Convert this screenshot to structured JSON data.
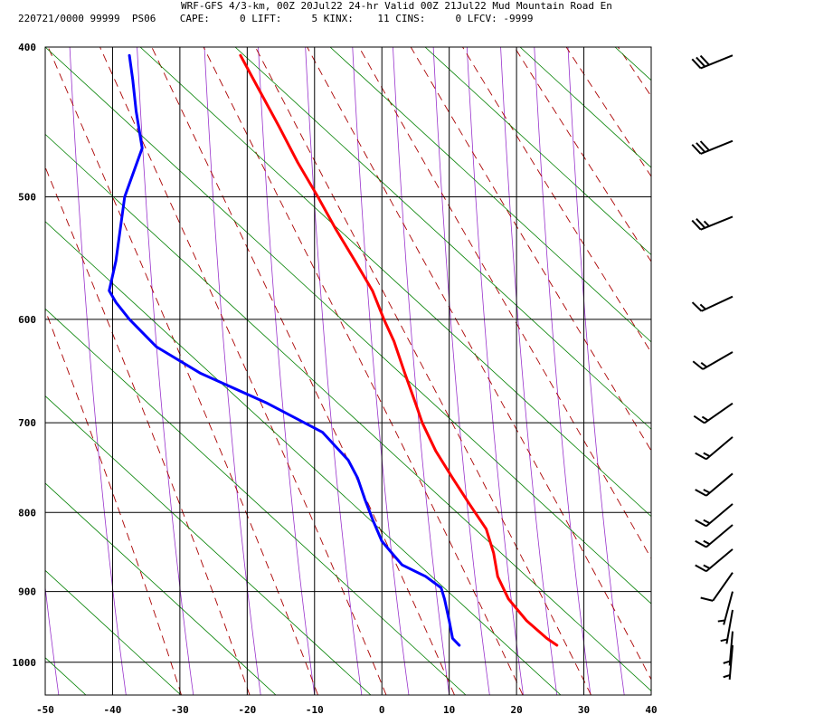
{
  "header": {
    "line1": "WRF-GFS 4/3-km, 00Z 20Jul22 24-hr Valid 00Z 21Jul22 Mud Mountain Road En",
    "line2": "220721/0000 99999  PS06    CAPE:     0 LIFT:     5 KINX:    11 CINS:     0 LFCV: -9999"
  },
  "colors": {
    "temperature": "#ff0000",
    "dewpoint": "#0000ff",
    "dry_adiabat": "#aa0000",
    "moist_adiabat": "#008000",
    "mixing_ratio": "#9933cc",
    "grid": "#000000"
  },
  "chart_data": {
    "type": "line",
    "title": "",
    "xlabel": "",
    "ylabel": "",
    "xlim": [
      -50,
      40
    ],
    "ylim": [
      1050,
      400
    ],
    "y_scale": "log",
    "grid": true,
    "x_ticks": [
      "-50",
      "-40",
      "-30",
      "-20",
      "-10",
      "0",
      "10",
      "20",
      "30",
      "40"
    ],
    "y_ticks": [
      "400",
      "500",
      "600",
      "700",
      "800",
      "900",
      "1000"
    ],
    "series": [
      {
        "key": "temperature",
        "points": [
          {
            "p": 975,
            "t": 26.0
          },
          {
            "p": 965,
            "t": 24.5
          },
          {
            "p": 940,
            "t": 21.5
          },
          {
            "p": 910,
            "t": 18.8
          },
          {
            "p": 880,
            "t": 17.2
          },
          {
            "p": 850,
            "t": 16.6
          },
          {
            "p": 820,
            "t": 15.5
          },
          {
            "p": 790,
            "t": 13.0
          },
          {
            "p": 760,
            "t": 10.5
          },
          {
            "p": 730,
            "t": 8.0
          },
          {
            "p": 700,
            "t": 6.0
          },
          {
            "p": 680,
            "t": 5.0
          },
          {
            "p": 650,
            "t": 3.4
          },
          {
            "p": 620,
            "t": 1.8
          },
          {
            "p": 600,
            "t": 0.3
          },
          {
            "p": 575,
            "t": -1.4
          },
          {
            "p": 550,
            "t": -4.0
          },
          {
            "p": 525,
            "t": -6.8
          },
          {
            "p": 500,
            "t": -9.5
          },
          {
            "p": 475,
            "t": -12.5
          },
          {
            "p": 450,
            "t": -15.3
          },
          {
            "p": 425,
            "t": -18.4
          },
          {
            "p": 405,
            "t": -21.0
          }
        ]
      },
      {
        "key": "dewpoint",
        "points": [
          {
            "p": 975,
            "t": 11.5
          },
          {
            "p": 965,
            "t": 10.5
          },
          {
            "p": 940,
            "t": 10.0
          },
          {
            "p": 910,
            "t": 9.3
          },
          {
            "p": 895,
            "t": 8.8
          },
          {
            "p": 880,
            "t": 6.5
          },
          {
            "p": 865,
            "t": 3.0
          },
          {
            "p": 850,
            "t": 1.5
          },
          {
            "p": 835,
            "t": 0.0
          },
          {
            "p": 810,
            "t": -1.3
          },
          {
            "p": 785,
            "t": -2.5
          },
          {
            "p": 760,
            "t": -3.6
          },
          {
            "p": 740,
            "t": -5.0
          },
          {
            "p": 710,
            "t": -8.8
          },
          {
            "p": 680,
            "t": -17.0
          },
          {
            "p": 650,
            "t": -27.0
          },
          {
            "p": 625,
            "t": -33.5
          },
          {
            "p": 600,
            "t": -37.5
          },
          {
            "p": 585,
            "t": -39.5
          },
          {
            "p": 575,
            "t": -40.5
          },
          {
            "p": 550,
            "t": -39.5
          },
          {
            "p": 500,
            "t": -38.2
          },
          {
            "p": 465,
            "t": -35.6
          },
          {
            "p": 440,
            "t": -36.5
          },
          {
            "p": 420,
            "t": -37.0
          },
          {
            "p": 405,
            "t": -37.5
          }
        ]
      }
    ],
    "wind_barbs": [
      {
        "p": 405,
        "dir": 248,
        "spd": 30
      },
      {
        "p": 460,
        "dir": 248,
        "spd": 30
      },
      {
        "p": 515,
        "dir": 248,
        "spd": 25
      },
      {
        "p": 580,
        "dir": 245,
        "spd": 15
      },
      {
        "p": 630,
        "dir": 240,
        "spd": 15
      },
      {
        "p": 680,
        "dir": 235,
        "spd": 15
      },
      {
        "p": 715,
        "dir": 230,
        "spd": 15
      },
      {
        "p": 755,
        "dir": 230,
        "spd": 15
      },
      {
        "p": 790,
        "dir": 230,
        "spd": 15
      },
      {
        "p": 815,
        "dir": 230,
        "spd": 15
      },
      {
        "p": 845,
        "dir": 230,
        "spd": 15
      },
      {
        "p": 875,
        "dir": 215,
        "spd": 10
      },
      {
        "p": 900,
        "dir": 195,
        "spd": 5
      },
      {
        "p": 925,
        "dir": 190,
        "spd": 5
      },
      {
        "p": 955,
        "dir": 185,
        "spd": 5
      },
      {
        "p": 975,
        "dir": 185,
        "spd": 5
      }
    ]
  }
}
